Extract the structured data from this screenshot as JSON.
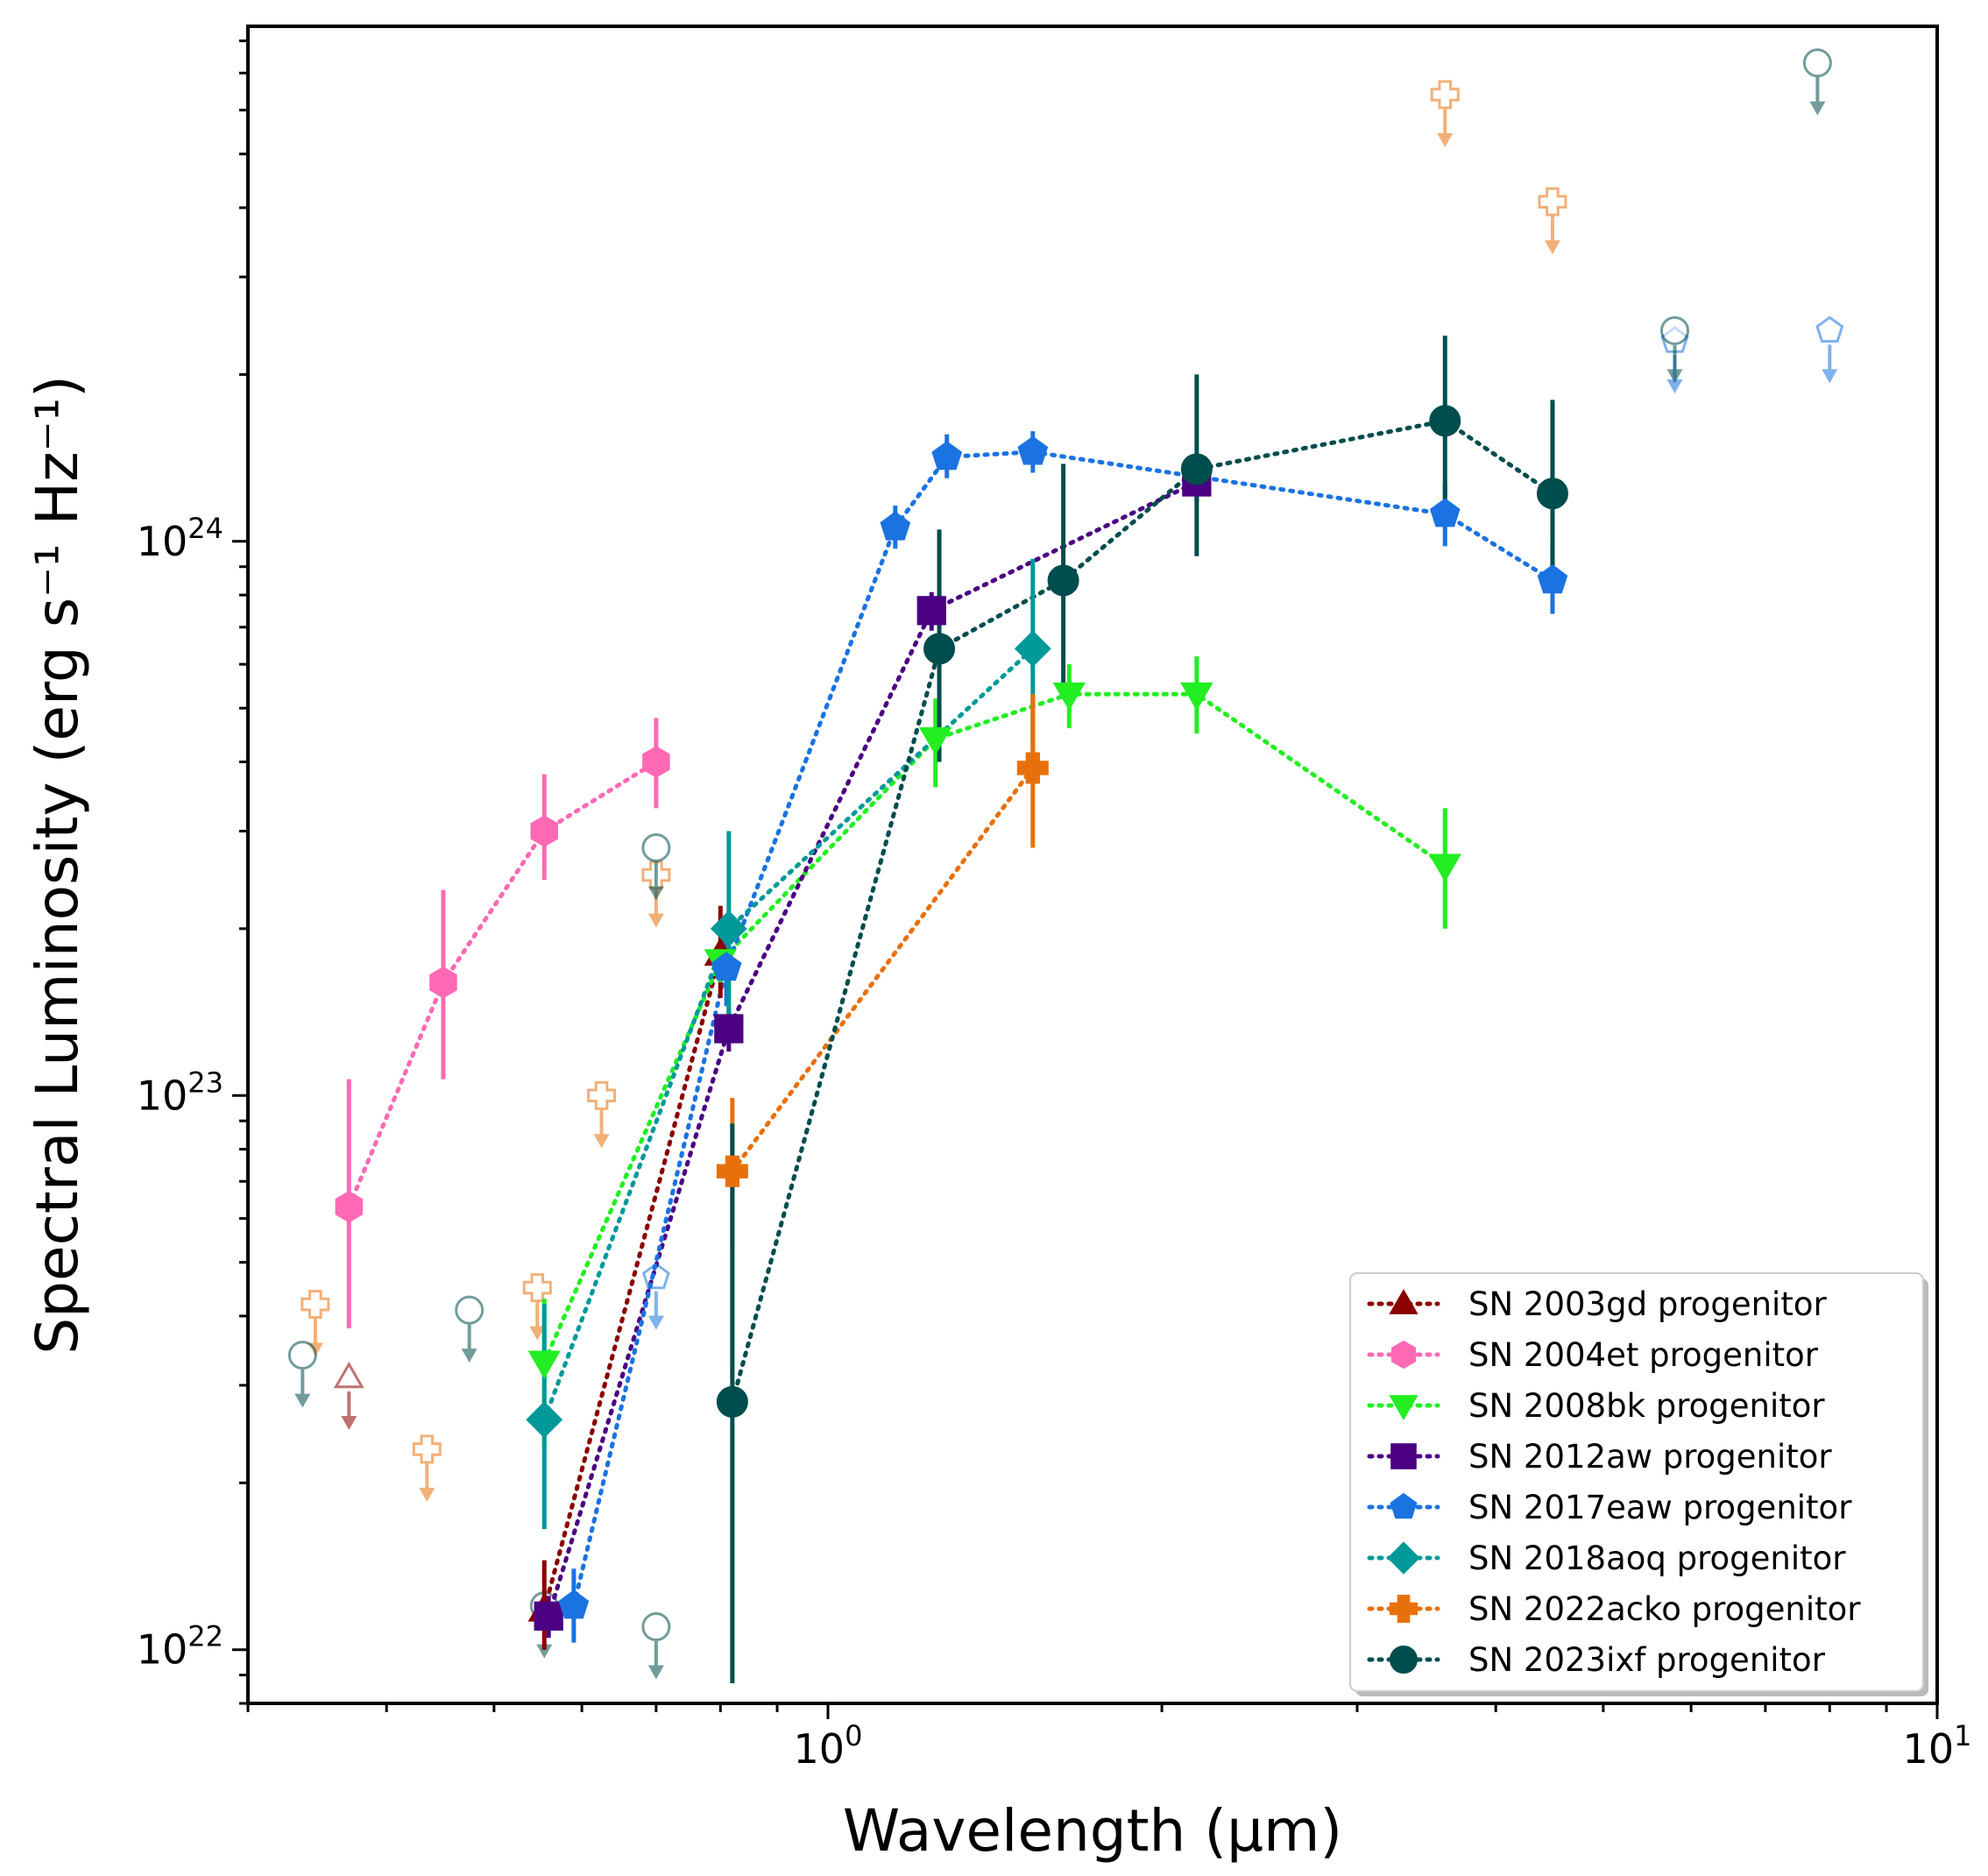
{
  "chart_data": {
    "type": "scatter",
    "title": "",
    "xlabel": "Wavelength (μm)",
    "ylabel": "Spectral Luminosity (erg s⁻¹ Hz⁻¹)",
    "xscale": "log",
    "yscale": "log",
    "xlim": [
      0.3,
      10
    ],
    "ylim": [
      8e+21,
      8.5e+24
    ],
    "x_ticks": [
      {
        "value": 1,
        "base": "10",
        "exp": "0"
      },
      {
        "value": 10,
        "base": "10",
        "exp": "1"
      }
    ],
    "y_ticks": [
      {
        "value": 1e+22,
        "base": "10",
        "exp": "22"
      },
      {
        "value": 1e+23,
        "base": "10",
        "exp": "23"
      },
      {
        "value": 1e+24,
        "base": "10",
        "exp": "24"
      }
    ],
    "legend_position": "lower right",
    "series": [
      {
        "name": "SN 2003gd progenitor",
        "color": "#8b0000",
        "marker": "triangle-up",
        "line": "dotted",
        "points": [
          {
            "x": 0.555,
            "y": 1.18e+22,
            "lo": 1e+22,
            "hi": 1.45e+22
          },
          {
            "x": 0.8,
            "y": 1.8e+23,
            "lo": 1.5e+23,
            "hi": 2.2e+23
          }
        ],
        "upper_limits": [
          {
            "x": 0.37,
            "y": 3.1e+22
          }
        ]
      },
      {
        "name": "SN 2004et progenitor",
        "color": "#ff69b4",
        "marker": "hexagon",
        "line": "dotted",
        "points": [
          {
            "x": 0.37,
            "y": 6.3e+22,
            "lo": 3.8e+22,
            "hi": 1.07e+23
          },
          {
            "x": 0.45,
            "y": 1.6e+23,
            "lo": 1.07e+23,
            "hi": 2.35e+23
          },
          {
            "x": 0.555,
            "y": 3e+23,
            "lo": 2.45e+23,
            "hi": 3.8e+23
          },
          {
            "x": 0.7,
            "y": 4e+23,
            "lo": 3.3e+23,
            "hi": 4.8e+23
          }
        ],
        "upper_limits": []
      },
      {
        "name": "SN 2008bk progenitor",
        "color": "#22ee22",
        "marker": "triangle-down",
        "line": "dotted",
        "points": [
          {
            "x": 0.555,
            "y": 3.3e+22,
            "lo": 2.3e+22,
            "hi": 4.3e+22
          },
          {
            "x": 0.8,
            "y": 1.75e+23,
            "lo": 1.6e+23,
            "hi": 1.9e+23
          },
          {
            "x": 1.25,
            "y": 4.4e+23,
            "lo": 3.6e+23,
            "hi": 5.2e+23
          },
          {
            "x": 1.65,
            "y": 5.3e+23,
            "lo": 4.6e+23,
            "hi": 6e+23
          },
          {
            "x": 2.15,
            "y": 5.3e+23,
            "lo": 4.5e+23,
            "hi": 6.2e+23
          },
          {
            "x": 3.6,
            "y": 2.6e+23,
            "lo": 2e+23,
            "hi": 3.3e+23
          }
        ],
        "upper_limits": []
      },
      {
        "name": "SN 2012aw progenitor",
        "color": "#4b0082",
        "marker": "square",
        "line": "dotted",
        "points": [
          {
            "x": 0.56,
            "y": 1.15e+22,
            "lo": 1.05e+22,
            "hi": 1.25e+22
          },
          {
            "x": 0.814,
            "y": 1.32e+23,
            "lo": 1.2e+23,
            "hi": 1.45e+23
          },
          {
            "x": 1.24,
            "y": 7.5e+23,
            "lo": 6.9e+23,
            "hi": 8.1e+23
          },
          {
            "x": 2.15,
            "y": 1.28e+24,
            "lo": 1.18e+24,
            "hi": 1.38e+24
          }
        ],
        "upper_limits": []
      },
      {
        "name": "SN 2017eaw progenitor",
        "color": "#1a73e0",
        "marker": "pentagon",
        "line": "dotted",
        "points": [
          {
            "x": 0.59,
            "y": 1.2e+22,
            "lo": 1.03e+22,
            "hi": 1.4e+22
          },
          {
            "x": 0.81,
            "y": 1.7e+23,
            "lo": 1.45e+23,
            "hi": 1.95e+23
          },
          {
            "x": 1.15,
            "y": 1.06e+24,
            "lo": 9.7e+23,
            "hi": 1.16e+24
          },
          {
            "x": 1.28,
            "y": 1.42e+24,
            "lo": 1.3e+24,
            "hi": 1.56e+24
          },
          {
            "x": 1.53,
            "y": 1.45e+24,
            "lo": 1.33e+24,
            "hi": 1.58e+24
          },
          {
            "x": 3.6,
            "y": 1.12e+24,
            "lo": 9.8e+23,
            "hi": 1.27e+24
          },
          {
            "x": 4.5,
            "y": 8.5e+23,
            "lo": 7.4e+23,
            "hi": 9.9e+23
          }
        ],
        "upper_limits": [
          {
            "x": 0.7,
            "y": 4.7e+22
          },
          {
            "x": 8.0,
            "y": 2.4e+24
          },
          {
            "x": 5.8,
            "y": 2.3e+24
          }
        ]
      },
      {
        "name": "SN 2018aoq progenitor",
        "color": "#009999",
        "marker": "diamond",
        "line": "dotted",
        "points": [
          {
            "x": 0.555,
            "y": 2.6e+22,
            "lo": 1.65e+22,
            "hi": 4.2e+22
          },
          {
            "x": 0.814,
            "y": 2e+23,
            "lo": 1.3e+23,
            "hi": 3e+23
          },
          {
            "x": 1.53,
            "y": 6.4e+23,
            "lo": 4.2e+23,
            "hi": 9.3e+23
          }
        ],
        "upper_limits": []
      },
      {
        "name": "SN 2022acko progenitor",
        "color": "#e8700a",
        "marker": "plus",
        "line": "dotted",
        "points": [
          {
            "x": 0.82,
            "y": 7.3e+22,
            "lo": 5.3e+22,
            "hi": 9.9e+22
          },
          {
            "x": 1.53,
            "y": 3.9e+23,
            "lo": 2.8e+23,
            "hi": 5.3e+23
          }
        ],
        "upper_limits": [
          {
            "x": 0.345,
            "y": 4.2e+22
          },
          {
            "x": 0.435,
            "y": 2.3e+22
          },
          {
            "x": 0.547,
            "y": 4.5e+22
          },
          {
            "x": 0.625,
            "y": 1e+23
          },
          {
            "x": 0.7,
            "y": 2.5e+23
          },
          {
            "x": 3.6,
            "y": 6.4e+24
          },
          {
            "x": 4.5,
            "y": 4.1e+24
          }
        ]
      },
      {
        "name": "SN 2023ixf progenitor",
        "color": "#004d4d",
        "marker": "circle",
        "line": "dotted",
        "points": [
          {
            "x": 0.82,
            "y": 2.8e+22,
            "lo": 8.7e+21,
            "hi": 8.9e+22
          },
          {
            "x": 1.26,
            "y": 6.4e+23,
            "lo": 4e+23,
            "hi": 1.05e+24
          },
          {
            "x": 1.63,
            "y": 8.5e+23,
            "lo": 5.4e+23,
            "hi": 1.38e+24
          },
          {
            "x": 2.15,
            "y": 1.35e+24,
            "lo": 9.4e+23,
            "hi": 2e+24
          },
          {
            "x": 3.6,
            "y": 1.65e+24,
            "lo": 1.15e+24,
            "hi": 2.35e+24
          },
          {
            "x": 4.5,
            "y": 1.22e+24,
            "lo": 8.2e+23,
            "hi": 1.8e+24
          }
        ],
        "upper_limits": [
          {
            "x": 0.336,
            "y": 3.4e+22
          },
          {
            "x": 0.475,
            "y": 4.1e+22
          },
          {
            "x": 0.555,
            "y": 1.2e+22
          },
          {
            "x": 0.7,
            "y": 2.8e+23
          },
          {
            "x": 0.7,
            "y": 1.1e+22
          },
          {
            "x": 5.8,
            "y": 2.4e+24
          },
          {
            "x": 7.8,
            "y": 7.3e+24
          }
        ]
      }
    ]
  }
}
